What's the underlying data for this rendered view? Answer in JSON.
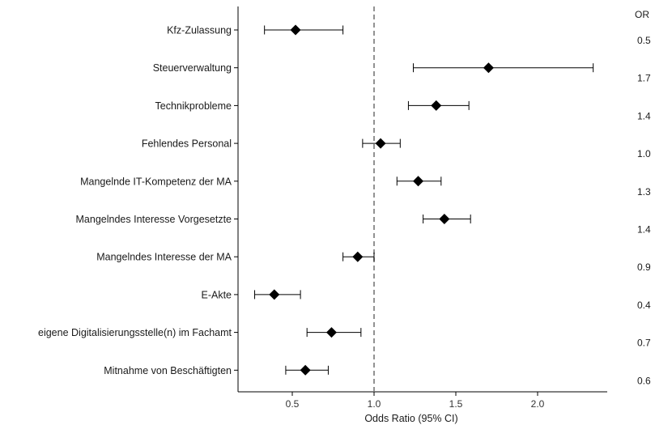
{
  "chart_data": {
    "type": "forest",
    "xlabel": "Odds Ratio (95% CI)",
    "or_header": "OR",
    "reference_line": 1.0,
    "xlim": [
      0.17,
      1.48
    ],
    "xticks": [
      0.5,
      1.0,
      1.5,
      2.0
    ],
    "xtick_labels": [
      "0.5",
      "1.0",
      "1.5",
      "2.0"
    ],
    "grid": false,
    "rows": [
      {
        "label": "Kfz-Zulassung",
        "or": 0.52,
        "lo": 0.33,
        "hi": 0.81,
        "or_text": "0.5"
      },
      {
        "label": "Steuerverwaltung",
        "or": 1.7,
        "lo": 1.24,
        "hi": 2.34,
        "or_text": "1.7"
      },
      {
        "label": "Technikprobleme",
        "or": 1.38,
        "lo": 1.21,
        "hi": 1.58,
        "or_text": "1.4"
      },
      {
        "label": "Fehlendes Personal",
        "or": 1.04,
        "lo": 0.93,
        "hi": 1.16,
        "or_text": "1.0"
      },
      {
        "label": "Mangelnde IT-Kompetenz der MA",
        "or": 1.27,
        "lo": 1.14,
        "hi": 1.41,
        "or_text": "1.3"
      },
      {
        "label": "Mangelndes Interesse Vorgesetzte",
        "or": 1.43,
        "lo": 1.3,
        "hi": 1.59,
        "or_text": "1.4"
      },
      {
        "label": "Mangelndes Interesse der MA",
        "or": 0.9,
        "lo": 0.81,
        "hi": 1.0,
        "or_text": "0.9"
      },
      {
        "label": "E-Akte",
        "or": 0.39,
        "lo": 0.27,
        "hi": 0.55,
        "or_text": "0.4"
      },
      {
        "label": "eigene Digitalisierungsstelle(n) im Fachamt",
        "or": 0.74,
        "lo": 0.59,
        "hi": 0.92,
        "or_text": "0.7"
      },
      {
        "label": "Mitnahme von Beschäftigten",
        "or": 0.58,
        "lo": 0.46,
        "hi": 0.72,
        "or_text": "0.6"
      }
    ]
  }
}
